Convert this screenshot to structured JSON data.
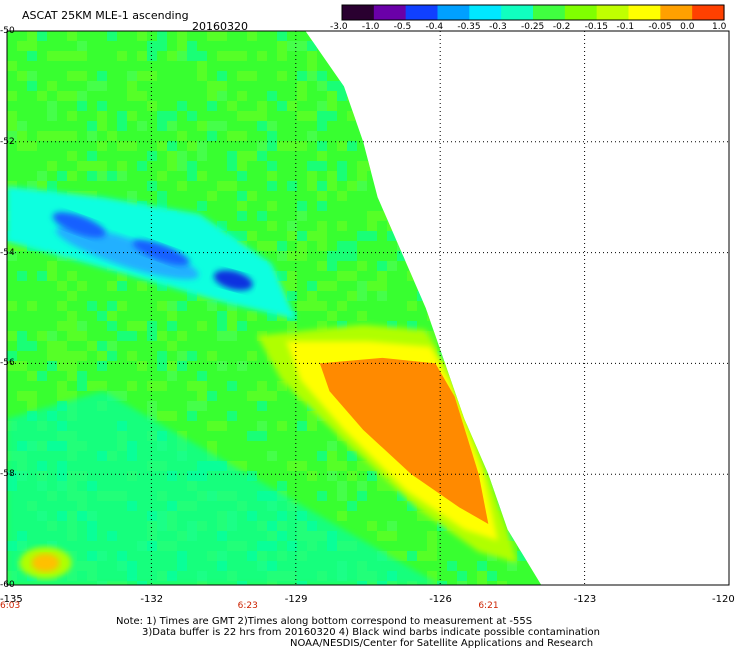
{
  "header": {
    "title": "ASCAT 25KM MLE-1 ascending",
    "date": "20160320"
  },
  "colorbar": {
    "labels": [
      "-3.0",
      "-1.0",
      "-0.5",
      "-0.4",
      "-0.35",
      "-0.3",
      "-0.25",
      "-0.2",
      "-0.15",
      "-0.1",
      "-0.05",
      "0.0",
      "1.0"
    ],
    "colors": [
      "#2a0030",
      "#6a00a8",
      "#1040ff",
      "#00a0ff",
      "#00e8ff",
      "#10ffc0",
      "#40ff40",
      "#80ff00",
      "#c0ff00",
      "#ffff00",
      "#ffa000",
      "#ff4000"
    ]
  },
  "footer": {
    "note_line1": "Note: 1) Times are GMT 2)Times along bottom correspond to measurement at -55S",
    "note_line2": "3)Data buffer is 22 hrs from 20160320 4) Black wind barbs indicate possible contamination",
    "credit": "NOAA/NESDIS/Center for Satellite Applications and Research"
  },
  "chart_data": {
    "type": "heatmap",
    "title": "ASCAT 25KM MLE-1 ascending",
    "subtitle": "20160320",
    "xlabel": "",
    "ylabel": "",
    "xlim": [
      -135,
      -120
    ],
    "ylim": [
      -60,
      -50
    ],
    "x_ticks": [
      {
        "value": -135,
        "label": "-135"
      },
      {
        "value": -132,
        "label": "-132"
      },
      {
        "value": -129,
        "label": "-129"
      },
      {
        "value": -126,
        "label": "-126"
      },
      {
        "value": -123,
        "label": "-123"
      },
      {
        "value": -120,
        "label": "-120"
      }
    ],
    "y_ticks": [
      {
        "value": -50,
        "label": "-50"
      },
      {
        "value": -52,
        "label": "-52"
      },
      {
        "value": -54,
        "label": "-54"
      },
      {
        "value": -56,
        "label": "-56"
      },
      {
        "value": -58,
        "label": "-58"
      },
      {
        "value": -60,
        "label": "-60"
      }
    ],
    "time_labels": [
      {
        "lon": -135,
        "label": "6:03"
      },
      {
        "lon": -130,
        "label": "6:23"
      },
      {
        "lon": -125,
        "label": "6:21"
      }
    ],
    "swath_edge": [
      {
        "lat": -50,
        "lon": -128.8
      },
      {
        "lat": -51,
        "lon": -128.0
      },
      {
        "lat": -52,
        "lon": -127.6
      },
      {
        "lat": -53,
        "lon": -127.3
      },
      {
        "lat": -54,
        "lon": -126.8
      },
      {
        "lat": -55,
        "lon": -126.3
      },
      {
        "lat": -56,
        "lon": -125.9
      },
      {
        "lat": -57,
        "lon": -125.5
      },
      {
        "lat": -58,
        "lon": -125.0
      },
      {
        "lat": -59,
        "lon": -124.6
      },
      {
        "lat": -60,
        "lon": -123.9
      }
    ],
    "features": [
      {
        "name": "minimum band",
        "lon": -131.5,
        "lat": -53.9,
        "value": -0.4
      },
      {
        "name": "maximum wedge",
        "lon": -126.5,
        "lat": -57.0,
        "value": 0.0
      },
      {
        "name": "corner patch",
        "lon": -134.2,
        "lat": -59.6,
        "value": -0.1
      }
    ],
    "grid": true,
    "grid_style": "dotted"
  }
}
